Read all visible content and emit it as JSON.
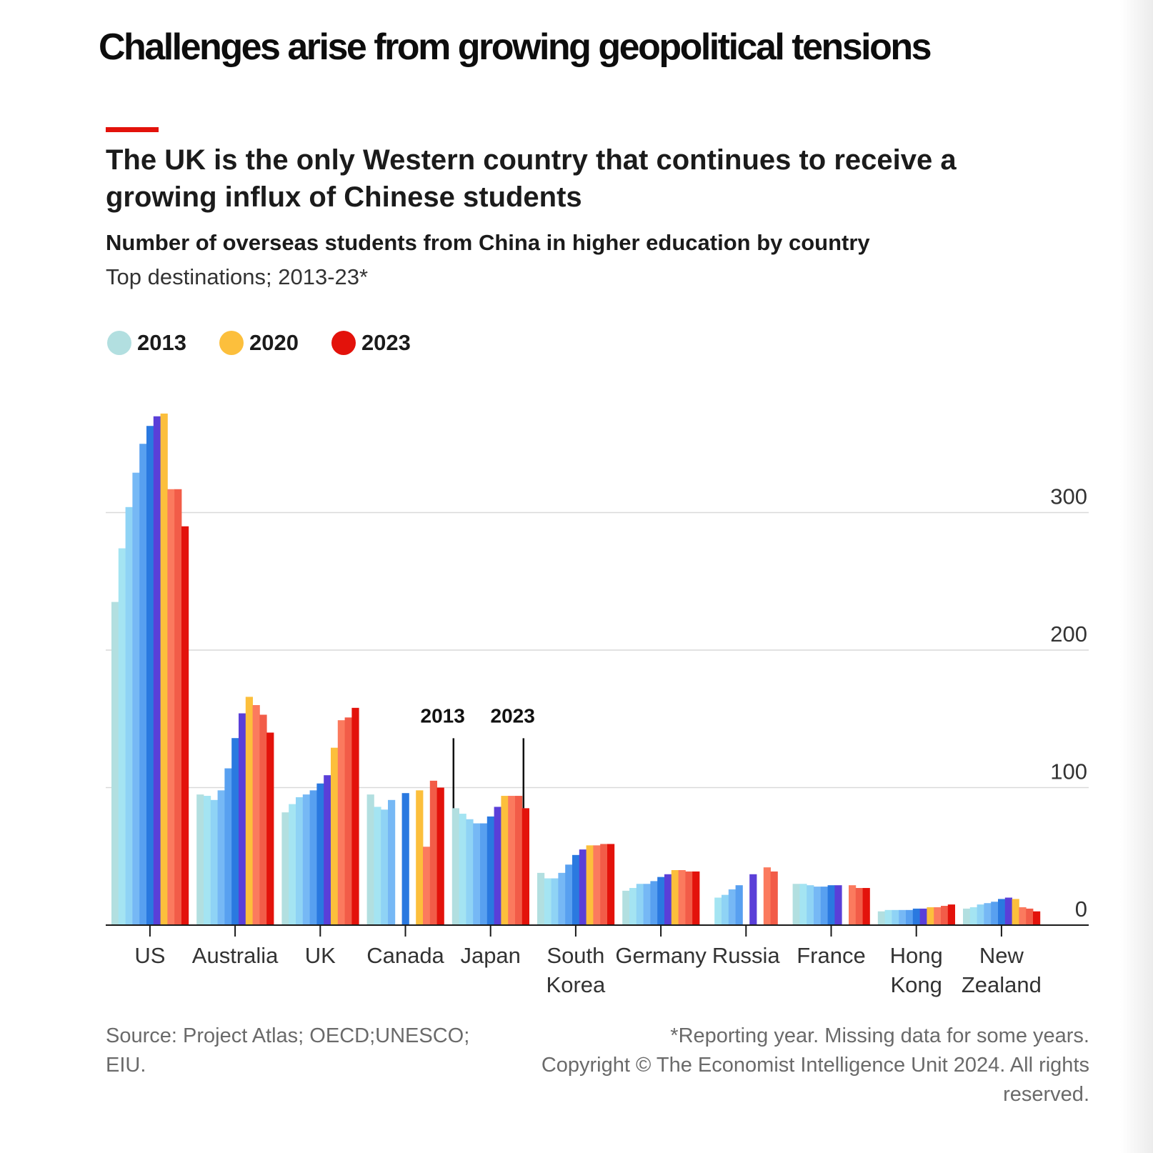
{
  "header": {
    "headline": "Challenges arise from growing geopolitical tensions",
    "title": "The UK is the only Western country that continues to receive a growing influx of Chinese students",
    "subtitle": "Number of overseas students from China in higher education by country",
    "description": "Top destinations; 2013-23*"
  },
  "legend": {
    "items": [
      {
        "label": "2013",
        "color": "#b2dfe0"
      },
      {
        "label": "2020",
        "color": "#fcbf3c"
      },
      {
        "label": "2023",
        "color": "#e3120b"
      }
    ]
  },
  "colors": {
    "years": [
      "#b2dfe0",
      "#a4e4f2",
      "#8fd3f5",
      "#76b8f5",
      "#58a0f0",
      "#2a79e0",
      "#5a3fd8",
      "#fcbf3c",
      "#fb7a5e",
      "#f25c48",
      "#e3120b"
    ]
  },
  "footer": {
    "source_line1": "Source: Project Atlas; OECD;UNESCO;",
    "source_line2": "EIU.",
    "note": "*Reporting year. Missing data for some years.",
    "copyright_line1": "Copyright © The Economist Intelligence Unit 2024. All rights",
    "copyright_line2": "reserved."
  },
  "chart_data": {
    "type": "bar",
    "title": "Number of overseas students from China in higher education by country",
    "subtitle": "Top destinations; 2013-23*",
    "x": [
      "2013",
      "2014",
      "2015",
      "2016",
      "2017",
      "2018",
      "2019",
      "2020",
      "2021",
      "2022",
      "2023"
    ],
    "categories": [
      "US",
      "Australia",
      "UK",
      "Canada",
      "Japan",
      "South Korea",
      "Germany",
      "Russia",
      "France",
      "Hong Kong",
      "New Zealand"
    ],
    "category_lines": [
      [
        "US"
      ],
      [
        "Australia"
      ],
      [
        "UK"
      ],
      [
        "Canada"
      ],
      [
        "Japan"
      ],
      [
        "South",
        "Korea"
      ],
      [
        "Germany"
      ],
      [
        "Russia"
      ],
      [
        "France"
      ],
      [
        "Hong",
        "Kong"
      ],
      [
        "New",
        "Zealand"
      ]
    ],
    "series": [
      {
        "category": "US",
        "values": [
          235,
          274,
          304,
          329,
          350,
          363,
          370,
          372,
          317,
          317,
          290
        ]
      },
      {
        "category": "Australia",
        "values": [
          95,
          94,
          91,
          98,
          114,
          136,
          154,
          166,
          160,
          153,
          140
        ]
      },
      {
        "category": "UK",
        "values": [
          82,
          88,
          93,
          95,
          98,
          103,
          109,
          129,
          149,
          151,
          158
        ]
      },
      {
        "category": "Canada",
        "values": [
          95,
          86,
          84,
          91,
          null,
          96,
          null,
          98,
          57,
          105,
          100
        ]
      },
      {
        "category": "Japan",
        "values": [
          85,
          81,
          77,
          74,
          74,
          79,
          86,
          94,
          94,
          94,
          85
        ]
      },
      {
        "category": "South Korea",
        "values": [
          38,
          34,
          34,
          38,
          44,
          51,
          55,
          58,
          58,
          59,
          59
        ]
      },
      {
        "category": "Germany",
        "values": [
          25,
          27,
          30,
          30,
          32,
          35,
          37,
          40,
          40,
          39,
          39
        ]
      },
      {
        "category": "Russia",
        "values": [
          null,
          20,
          22,
          26,
          29,
          null,
          37,
          null,
          42,
          39,
          null
        ]
      },
      {
        "category": "France",
        "values": [
          30,
          30,
          29,
          28,
          28,
          29,
          29,
          null,
          29,
          27,
          27
        ]
      },
      {
        "category": "Hong Kong",
        "values": [
          10,
          11,
          11,
          11,
          11,
          12,
          12,
          13,
          13,
          14,
          15
        ]
      },
      {
        "category": "New Zealand",
        "values": [
          12,
          13,
          15,
          16,
          17,
          19,
          20,
          19,
          13,
          12,
          10
        ]
      }
    ],
    "y_ticks": [
      "300",
      "200",
      "100",
      "0"
    ],
    "ylim": [
      0,
      380
    ],
    "annotations": [
      {
        "label": "2013",
        "category": "Japan",
        "year": "2013"
      },
      {
        "label": "2023",
        "category": "Japan",
        "year": "2023"
      }
    ],
    "grid": true,
    "y_axis_side": "right",
    "legend_position": "top-left",
    "units": "thousands"
  }
}
